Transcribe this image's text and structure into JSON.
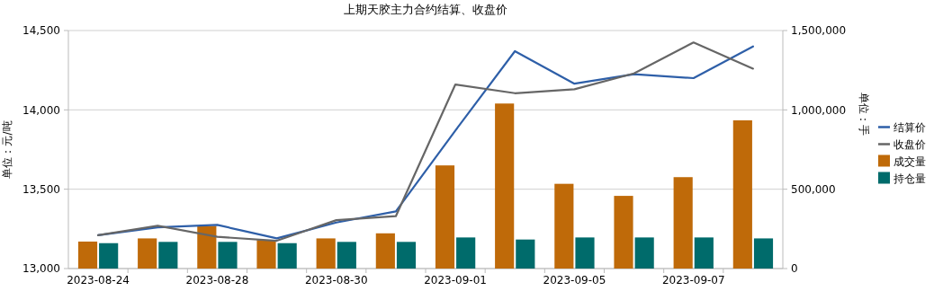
{
  "chart_data": {
    "type": "line",
    "title": "上期天胶主力合约结算、收盘价",
    "ylabel": "单位：元/吨",
    "y2label": "单位：手",
    "categories": [
      "2023-08-24",
      null,
      "2023-08-28",
      null,
      "2023-08-30",
      null,
      "2023-09-01",
      null,
      "2023-09-05",
      null,
      "2023-09-07",
      null
    ],
    "series": [
      {
        "name": "结算价",
        "color": "#2e5fa8",
        "values": [
          13210,
          13260,
          13275,
          13190,
          13290,
          13360,
          13870,
          14370,
          14165,
          14225,
          14200,
          14400
        ]
      },
      {
        "name": "收盘价",
        "color": "#666666",
        "values": [
          13210,
          13270,
          13200,
          13175,
          13305,
          13330,
          14160,
          14105,
          14130,
          14230,
          14425,
          14260
        ]
      },
      {
        "name": "成交量",
        "type": "bar",
        "axis": "y2",
        "color": "#bf6a09",
        "values": [
          170000,
          190000,
          268000,
          180000,
          190000,
          222000,
          650000,
          1040000,
          534000,
          458000,
          576000,
          934000
        ]
      },
      {
        "name": "持仓量",
        "type": "bar",
        "axis": "y2",
        "color": "#006b6b",
        "values": [
          160000,
          168000,
          168000,
          160000,
          168000,
          168000,
          196000,
          183000,
          196000,
          196000,
          196000,
          190000
        ]
      }
    ],
    "ylim": [
      13000,
      14500
    ],
    "yticks": [
      {
        "value": 13000,
        "label": "13,000"
      },
      {
        "value": 13500,
        "label": "13,500"
      },
      {
        "value": 14000,
        "label": "14,000"
      },
      {
        "value": 14500,
        "label": "14,500"
      }
    ],
    "y2lim": [
      0,
      1500000
    ],
    "y2ticks": [
      0,
      {
        "value": 500000,
        "label": "500,000"
      },
      {
        "value": 1000000,
        "label": "1,000,000"
      },
      {
        "value": 1500000,
        "label": "1,500,000"
      }
    ],
    "grid": "y",
    "legend": "right",
    "line_style": "solid",
    "marker": "none"
  }
}
